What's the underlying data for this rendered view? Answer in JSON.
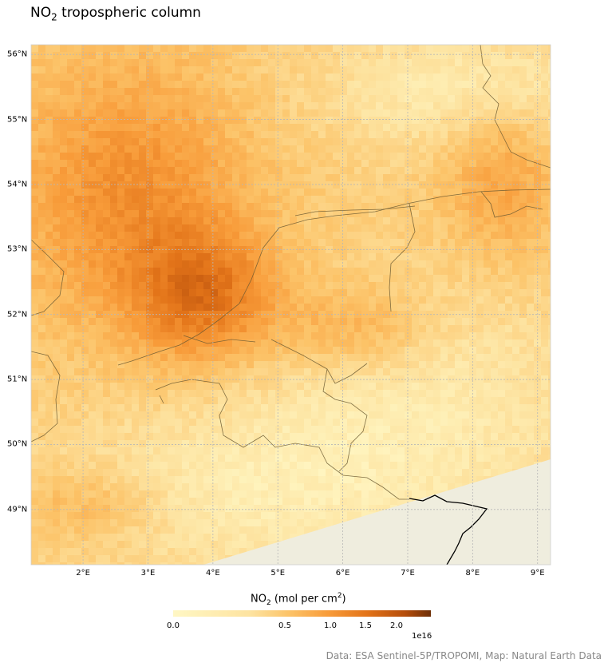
{
  "title": {
    "prefix": "NO",
    "subscript": "2",
    "suffix": " tropospheric column"
  },
  "map": {
    "lon_range": [
      1.2,
      9.2
    ],
    "lat_range": [
      48.15,
      56.15
    ],
    "gridlines": "dotted",
    "ocean_land_color": "#efedde",
    "boundary_color": "#6b5a32",
    "x_ticks": [
      "2°E",
      "3°E",
      "4°E",
      "5°E",
      "6°E",
      "7°E",
      "8°E",
      "9°E"
    ],
    "y_ticks": [
      "49°N",
      "50°N",
      "51°N",
      "52°N",
      "53°N",
      "54°N",
      "55°N",
      "56°N"
    ]
  },
  "colorbar": {
    "label_prefix": "NO",
    "label_subscript": "2",
    "label_middle": " (mol per cm",
    "label_superscript": "2",
    "label_suffix": ")",
    "ticks": [
      "0.0",
      "0.5",
      "1.0",
      "1.5",
      "2.0"
    ],
    "exponent": "1e16",
    "colors": [
      "#fff7c4",
      "#fde3a0",
      "#fcc368",
      "#f89c3a",
      "#e37419",
      "#b54d0b",
      "#6e2f07"
    ]
  },
  "credit": "Data: ESA Sentinel-5P/TROPOMI, Map: Natural Earth Data"
}
